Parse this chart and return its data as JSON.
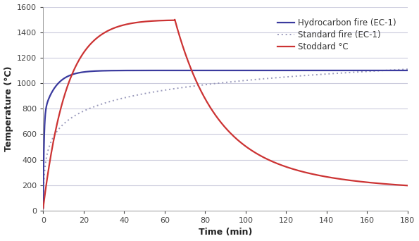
{
  "xlabel": "Time (min)",
  "ylabel": "Temperature (°C)",
  "xlim": [
    0,
    180
  ],
  "ylim": [
    0,
    1600
  ],
  "yticks": [
    0,
    200,
    400,
    600,
    800,
    1000,
    1200,
    1400,
    1600
  ],
  "xticks": [
    0,
    20,
    40,
    60,
    80,
    100,
    120,
    140,
    160,
    180
  ],
  "hydrocarbon_color": "#3a3a9e",
  "standard_color": "#9999bb",
  "stoddard_color": "#cc3333",
  "bg_color": "#ffffff",
  "grid_color": "#ccccdd",
  "spine_color": "#999999",
  "tick_color": "#444444",
  "legend_labels": [
    "Hydrocarbon fire (EC-1)",
    "Standard fire (EC-1)",
    "Stoddard °C"
  ],
  "figsize": [
    5.95,
    3.42
  ],
  "dpi": 100
}
